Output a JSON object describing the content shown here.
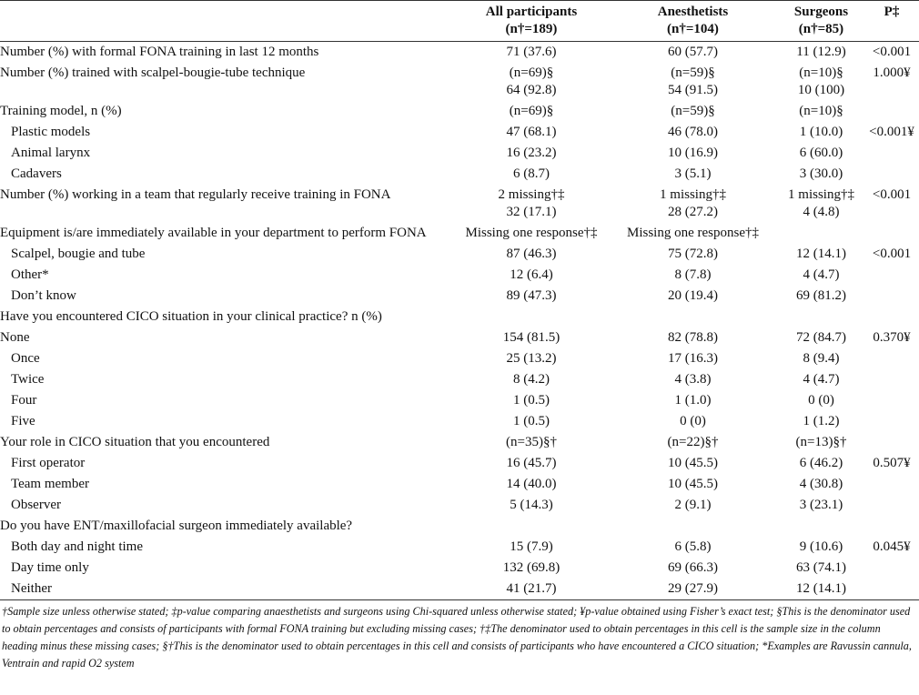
{
  "table": {
    "header": [
      null,
      [
        "All participants",
        "(n†=189)"
      ],
      [
        "Anesthetists",
        "(n†=104)"
      ],
      [
        "Surgeons",
        "(n†=85)"
      ],
      [
        "P‡"
      ]
    ],
    "rows": [
      {
        "label": "Number (%) with formal FONA training in last 12 months",
        "indent": false,
        "cells": [
          "71 (37.6)",
          "60 (57.7)",
          "11 (12.9)",
          "<0.001"
        ]
      },
      {
        "label": "Number (%) trained with scalpel-bougie-tube technique",
        "indent": false,
        "cells": [
          [
            "(n=69)§",
            "64 (92.8)"
          ],
          [
            "(n=59)§",
            "54 (91.5)"
          ],
          [
            "(n=10)§",
            "10 (100)"
          ],
          "1.000¥"
        ]
      },
      {
        "label": "Training model, n (%)",
        "indent": false,
        "cells": [
          "(n=69)§",
          "(n=59)§",
          "(n=10)§",
          null
        ]
      },
      {
        "label": "Plastic models",
        "indent": true,
        "cells": [
          "47 (68.1)",
          "46 (78.0)",
          "1 (10.0)",
          "<0.001¥"
        ]
      },
      {
        "label": "Animal larynx",
        "indent": true,
        "cells": [
          "16 (23.2)",
          "10 (16.9)",
          "6 (60.0)",
          null
        ]
      },
      {
        "label": "Cadavers",
        "indent": true,
        "cells": [
          "6 (8.7)",
          "3 (5.1)",
          "3 (30.0)",
          null
        ]
      },
      {
        "label": "Number (%) working in a team that regularly receive training in FONA",
        "indent": false,
        "cells": [
          [
            "2 missing†‡",
            "32 (17.1)"
          ],
          [
            "1 missing†‡",
            "28 (27.2)"
          ],
          [
            "1 missing†‡",
            "4 (4.8)"
          ],
          "<0.001"
        ]
      },
      {
        "label": "Equipment is/are immediately available in your department to perform FONA",
        "indent": false,
        "cells": [
          "Missing one response†‡",
          "Missing one response†‡",
          null,
          null
        ]
      },
      {
        "label": "Scalpel, bougie and tube",
        "indent": true,
        "cells": [
          "87 (46.3)",
          "75 (72.8)",
          "12 (14.1)",
          "<0.001"
        ]
      },
      {
        "label": "Other*",
        "indent": true,
        "cells": [
          "12 (6.4)",
          "8 (7.8)",
          "4 (4.7)",
          null
        ]
      },
      {
        "label": "Don’t know",
        "indent": true,
        "cells": [
          "89 (47.3)",
          "20 (19.4)",
          "69 (81.2)",
          null
        ]
      },
      {
        "label": "Have you encountered CICO situation in your clinical practice? n (%)",
        "indent": false,
        "cells": [
          null,
          null,
          null,
          null
        ]
      },
      {
        "label": "None",
        "indent": false,
        "cells": [
          "154 (81.5)",
          "82 (78.8)",
          "72 (84.7)",
          "0.370¥"
        ]
      },
      {
        "label": "Once",
        "indent": true,
        "cells": [
          "25 (13.2)",
          "17 (16.3)",
          "8 (9.4)",
          null
        ]
      },
      {
        "label": "Twice",
        "indent": true,
        "cells": [
          "8 (4.2)",
          "4 (3.8)",
          "4 (4.7)",
          null
        ]
      },
      {
        "label": "Four",
        "indent": true,
        "cells": [
          "1 (0.5)",
          "1 (1.0)",
          "0 (0)",
          null
        ]
      },
      {
        "label": "Five",
        "indent": true,
        "cells": [
          "1 (0.5)",
          "0 (0)",
          "1 (1.2)",
          null
        ]
      },
      {
        "label": "Your role in CICO situation that you encountered",
        "indent": false,
        "cells": [
          "(n=35)§†",
          "(n=22)§†",
          "(n=13)§†",
          null
        ]
      },
      {
        "label": "First operator",
        "indent": true,
        "cells": [
          "16 (45.7)",
          "10 (45.5)",
          "6 (46.2)",
          "0.507¥"
        ]
      },
      {
        "label": "Team member",
        "indent": true,
        "cells": [
          "14 (40.0)",
          "10 (45.5)",
          "4 (30.8)",
          null
        ]
      },
      {
        "label": "Observer",
        "indent": true,
        "cells": [
          "5 (14.3)",
          "2 (9.1)",
          "3 (23.1)",
          null
        ]
      },
      {
        "label": "Do you have ENT/maxillofacial surgeon immediately available?",
        "indent": false,
        "cells": [
          null,
          null,
          null,
          null
        ]
      },
      {
        "label": "Both day and night time",
        "indent": true,
        "cells": [
          "15 (7.9)",
          "6 (5.8)",
          "9 (10.6)",
          "0.045¥"
        ]
      },
      {
        "label": "Day time only",
        "indent": true,
        "cells": [
          "132 (69.8)",
          "69 (66.3)",
          "63 (74.1)",
          null
        ]
      },
      {
        "label": "Neither",
        "indent": true,
        "cells": [
          "41 (21.7)",
          "29 (27.9)",
          "12 (14.1)",
          null
        ]
      }
    ],
    "footnote": "†Sample size unless otherwise stated; ‡p-value comparing anaesthetists and surgeons using Chi-squared unless otherwise stated; ¥p-value obtained using Fisher’s exact test; §This is the denominator used to obtain percentages and consists of participants with formal FONA training but excluding missing cases; †‡The denominator used to obtain percentages in this cell is the sample size in the column heading minus these missing cases; §†This is the denominator used to obtain percentages in this cell and consists of participants who have encountered a CICO situation; *Examples are Ravussin cannula, Ventrain and rapid O2 system"
  }
}
